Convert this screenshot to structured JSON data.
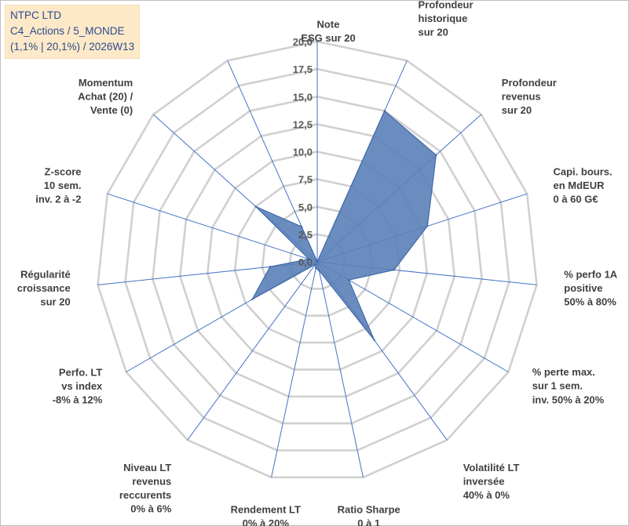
{
  "header": {
    "line1": "NTPC LTD",
    "line2": "C4_Actions / 5_MONDE",
    "line3": "(1,1% | 20,1%) / 2026W13"
  },
  "chart_data": {
    "type": "radar",
    "title": "NTPC LTD",
    "rmin": 0,
    "rmax": 20,
    "ticks": [
      0,
      2.5,
      5,
      7.5,
      10,
      12.5,
      15,
      17.5,
      20
    ],
    "tick_labels": [
      "0,0",
      "2,5",
      "5,0",
      "7,5",
      "10,0",
      "12,5",
      "15,0",
      "17,5",
      "20,0"
    ],
    "grid": true,
    "axes": [
      {
        "lines": [
          "Note",
          "ESG sur 20"
        ],
        "value": 0
      },
      {
        "lines": [
          "Profondeur",
          "historique",
          "sur 20"
        ],
        "value": 15.0
      },
      {
        "lines": [
          "Profondeur",
          "revenus",
          "sur 20"
        ],
        "value": 14.5
      },
      {
        "lines": [
          "Capi. bours.",
          "en MdEUR",
          "0 à 60 G€"
        ],
        "value": 10.5
      },
      {
        "lines": [
          "% perfo 1A",
          "positive",
          "50% à 80%"
        ],
        "value": 7.0
      },
      {
        "lines": [
          "% perte max.",
          "sur 1 sem.",
          "inv. 50% à 20%"
        ],
        "value": 3.3
      },
      {
        "lines": [
          "Volatilité LT",
          "inversée",
          "40% à 0%"
        ],
        "value": 8.8
      },
      {
        "lines": [
          "Ratio Sharpe",
          "0 à 1"
        ],
        "value": 0.8
      },
      {
        "lines": [
          "Rendement LT",
          "0% à 20%"
        ],
        "value": 0.6
      },
      {
        "lines": [
          "Niveau LT",
          "revenus",
          "reccurents",
          "0% à 6%"
        ],
        "value": 0.3
      },
      {
        "lines": [
          "Perfo. LT",
          "vs index",
          "-8% à 12%"
        ],
        "value": 6.8
      },
      {
        "lines": [
          "Régularité",
          "croissance",
          "sur 20"
        ],
        "value": 4.3
      },
      {
        "lines": [
          "Z-score",
          "10 sem.",
          "inv. 2 à -2"
        ],
        "value": 0.8
      },
      {
        "lines": [
          "Momentum",
          "Achat (20) /",
          "Vente (0)"
        ],
        "value": 7.5
      },
      {
        "lines": [],
        "value": 3.5
      }
    ],
    "series": [
      {
        "name": "NTPC LTD",
        "color": "#5b80b8",
        "stroke": "#3f6aa8"
      }
    ]
  }
}
